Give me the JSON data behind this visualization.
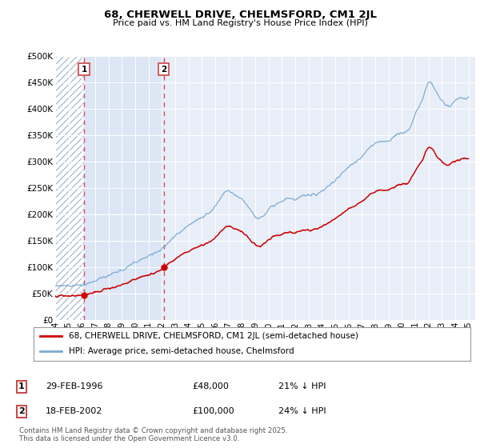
{
  "title": "68, CHERWELL DRIVE, CHELMSFORD, CM1 2JL",
  "subtitle": "Price paid vs. HM Land Registry's House Price Index (HPI)",
  "legend_label_red": "68, CHERWELL DRIVE, CHELMSFORD, CM1 2JL (semi-detached house)",
  "legend_label_blue": "HPI: Average price, semi-detached house, Chelmsford",
  "footnote": "Contains HM Land Registry data © Crown copyright and database right 2025.\nThis data is licensed under the Open Government Licence v3.0.",
  "sale1_date": "29-FEB-1996",
  "sale1_price": "£48,000",
  "sale1_hpi": "21% ↓ HPI",
  "sale2_date": "18-FEB-2002",
  "sale2_price": "£100,000",
  "sale2_hpi": "24% ↓ HPI",
  "ylim": [
    0,
    500000
  ],
  "yticks": [
    0,
    50000,
    100000,
    150000,
    200000,
    250000,
    300000,
    350000,
    400000,
    450000,
    500000
  ],
  "ytick_labels": [
    "£0",
    "£50K",
    "£100K",
    "£150K",
    "£200K",
    "£250K",
    "£300K",
    "£350K",
    "£400K",
    "£450K",
    "£500K"
  ],
  "background_color": "#e8eef8",
  "hatch_bg_color": "#ffffff",
  "hatch_between_color": "#dce6f5",
  "grid_color": "#ffffff",
  "red_line_color": "#cc0000",
  "blue_line_color": "#7aaad0",
  "vline_color": "#cc4444",
  "sale1_x": 1996.16,
  "sale2_x": 2002.13,
  "sale1_y": 48000,
  "sale2_y": 100000,
  "xmin": 1994,
  "xmax": 2025.5
}
